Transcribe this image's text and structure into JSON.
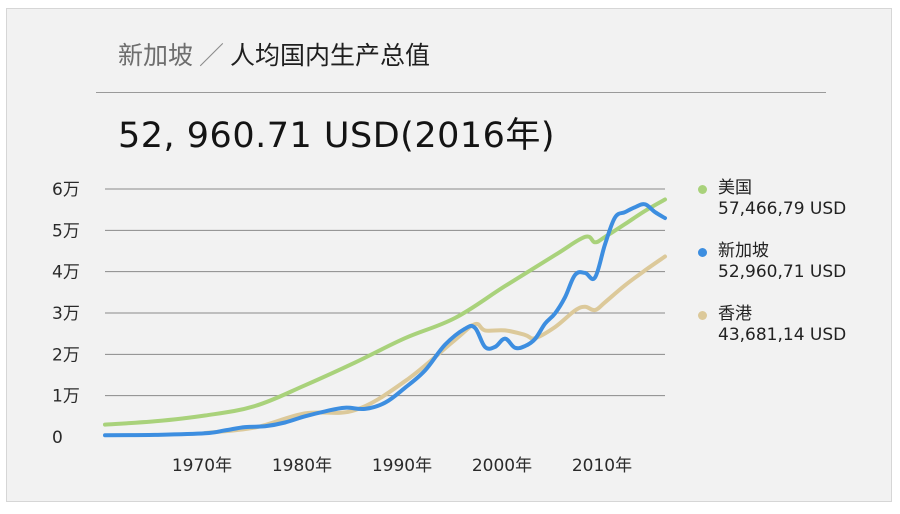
{
  "header": {
    "title_country": "新加坡",
    "title_separator": "／",
    "title_metric": "人均国内生产总值",
    "headline_value": "52, 960.71  USD(2016年)"
  },
  "colors": {
    "usa": "#a9d27b",
    "singapore": "#3d8ee0",
    "hongkong": "#dcc99a",
    "grid": "#8a8a8a",
    "card_bg": "#f2f2f2"
  },
  "legend": [
    {
      "name": "美国",
      "value": "57,466,79 USD",
      "color": "#a9d27b"
    },
    {
      "name": "新加坡",
      "value": "52,960,71 USD",
      "color": "#3d8ee0"
    },
    {
      "name": "香港",
      "value": "43,681,14 USD",
      "color": "#dcc99a"
    }
  ],
  "chart_data": {
    "type": "line",
    "title": "",
    "xlabel": "",
    "ylabel": "",
    "x_tick_labels": [
      "1970年",
      "1980年",
      "1990年",
      "2000年",
      "2010年"
    ],
    "y_tick_labels": [
      "0",
      "1万",
      "2万",
      "3万",
      "4万",
      "5万",
      "6万"
    ],
    "y_ticks": [
      0,
      10000,
      20000,
      30000,
      40000,
      50000,
      60000
    ],
    "x_ticks": [
      1970,
      1980,
      1990,
      2000,
      2010
    ],
    "xlim": [
      1960,
      2016
    ],
    "ylim": [
      0,
      60000
    ],
    "grid": true,
    "legend_position": "right",
    "series": [
      {
        "name": "美国",
        "key": "usa",
        "points": [
          [
            1960,
            3000
          ],
          [
            1965,
            3800
          ],
          [
            1970,
            5200
          ],
          [
            1975,
            7500
          ],
          [
            1980,
            12500
          ],
          [
            1985,
            18000
          ],
          [
            1990,
            23900
          ],
          [
            1995,
            28800
          ],
          [
            2000,
            36500
          ],
          [
            2005,
            44000
          ],
          [
            2008,
            48400
          ],
          [
            2009,
            47100
          ],
          [
            2010,
            48400
          ],
          [
            2012,
            51500
          ],
          [
            2014,
            54700
          ],
          [
            2016,
            57466
          ]
        ]
      },
      {
        "name": "新加坡",
        "key": "singapore",
        "points": [
          [
            1960,
            430
          ],
          [
            1965,
            520
          ],
          [
            1970,
            900
          ],
          [
            1972,
            1600
          ],
          [
            1974,
            2400
          ],
          [
            1976,
            2600
          ],
          [
            1978,
            3500
          ],
          [
            1980,
            5000
          ],
          [
            1982,
            6200
          ],
          [
            1984,
            7100
          ],
          [
            1986,
            6800
          ],
          [
            1988,
            8300
          ],
          [
            1990,
            11900
          ],
          [
            1992,
            16100
          ],
          [
            1994,
            22300
          ],
          [
            1996,
            26200
          ],
          [
            1997,
            26400
          ],
          [
            1998,
            21800
          ],
          [
            1999,
            21800
          ],
          [
            2000,
            23800
          ],
          [
            2001,
            21600
          ],
          [
            2002,
            22000
          ],
          [
            2003,
            23700
          ],
          [
            2004,
            27400
          ],
          [
            2005,
            29900
          ],
          [
            2006,
            33800
          ],
          [
            2007,
            39200
          ],
          [
            2008,
            39700
          ],
          [
            2009,
            38600
          ],
          [
            2010,
            46600
          ],
          [
            2011,
            53100
          ],
          [
            2012,
            54400
          ],
          [
            2013,
            55600
          ],
          [
            2014,
            56300
          ],
          [
            2015,
            54400
          ],
          [
            2016,
            52960
          ]
        ]
      },
      {
        "name": "香港",
        "key": "hongkong",
        "points": [
          [
            1970,
            960
          ],
          [
            1975,
            2300
          ],
          [
            1980,
            5700
          ],
          [
            1985,
            6500
          ],
          [
            1990,
            13500
          ],
          [
            1995,
            23500
          ],
          [
            1997,
            27300
          ],
          [
            1998,
            25800
          ],
          [
            2000,
            25800
          ],
          [
            2002,
            24700
          ],
          [
            2003,
            23900
          ],
          [
            2005,
            26600
          ],
          [
            2007,
            30600
          ],
          [
            2008,
            31500
          ],
          [
            2009,
            30700
          ],
          [
            2010,
            32600
          ],
          [
            2012,
            36700
          ],
          [
            2014,
            40300
          ],
          [
            2016,
            43681
          ]
        ]
      }
    ]
  }
}
